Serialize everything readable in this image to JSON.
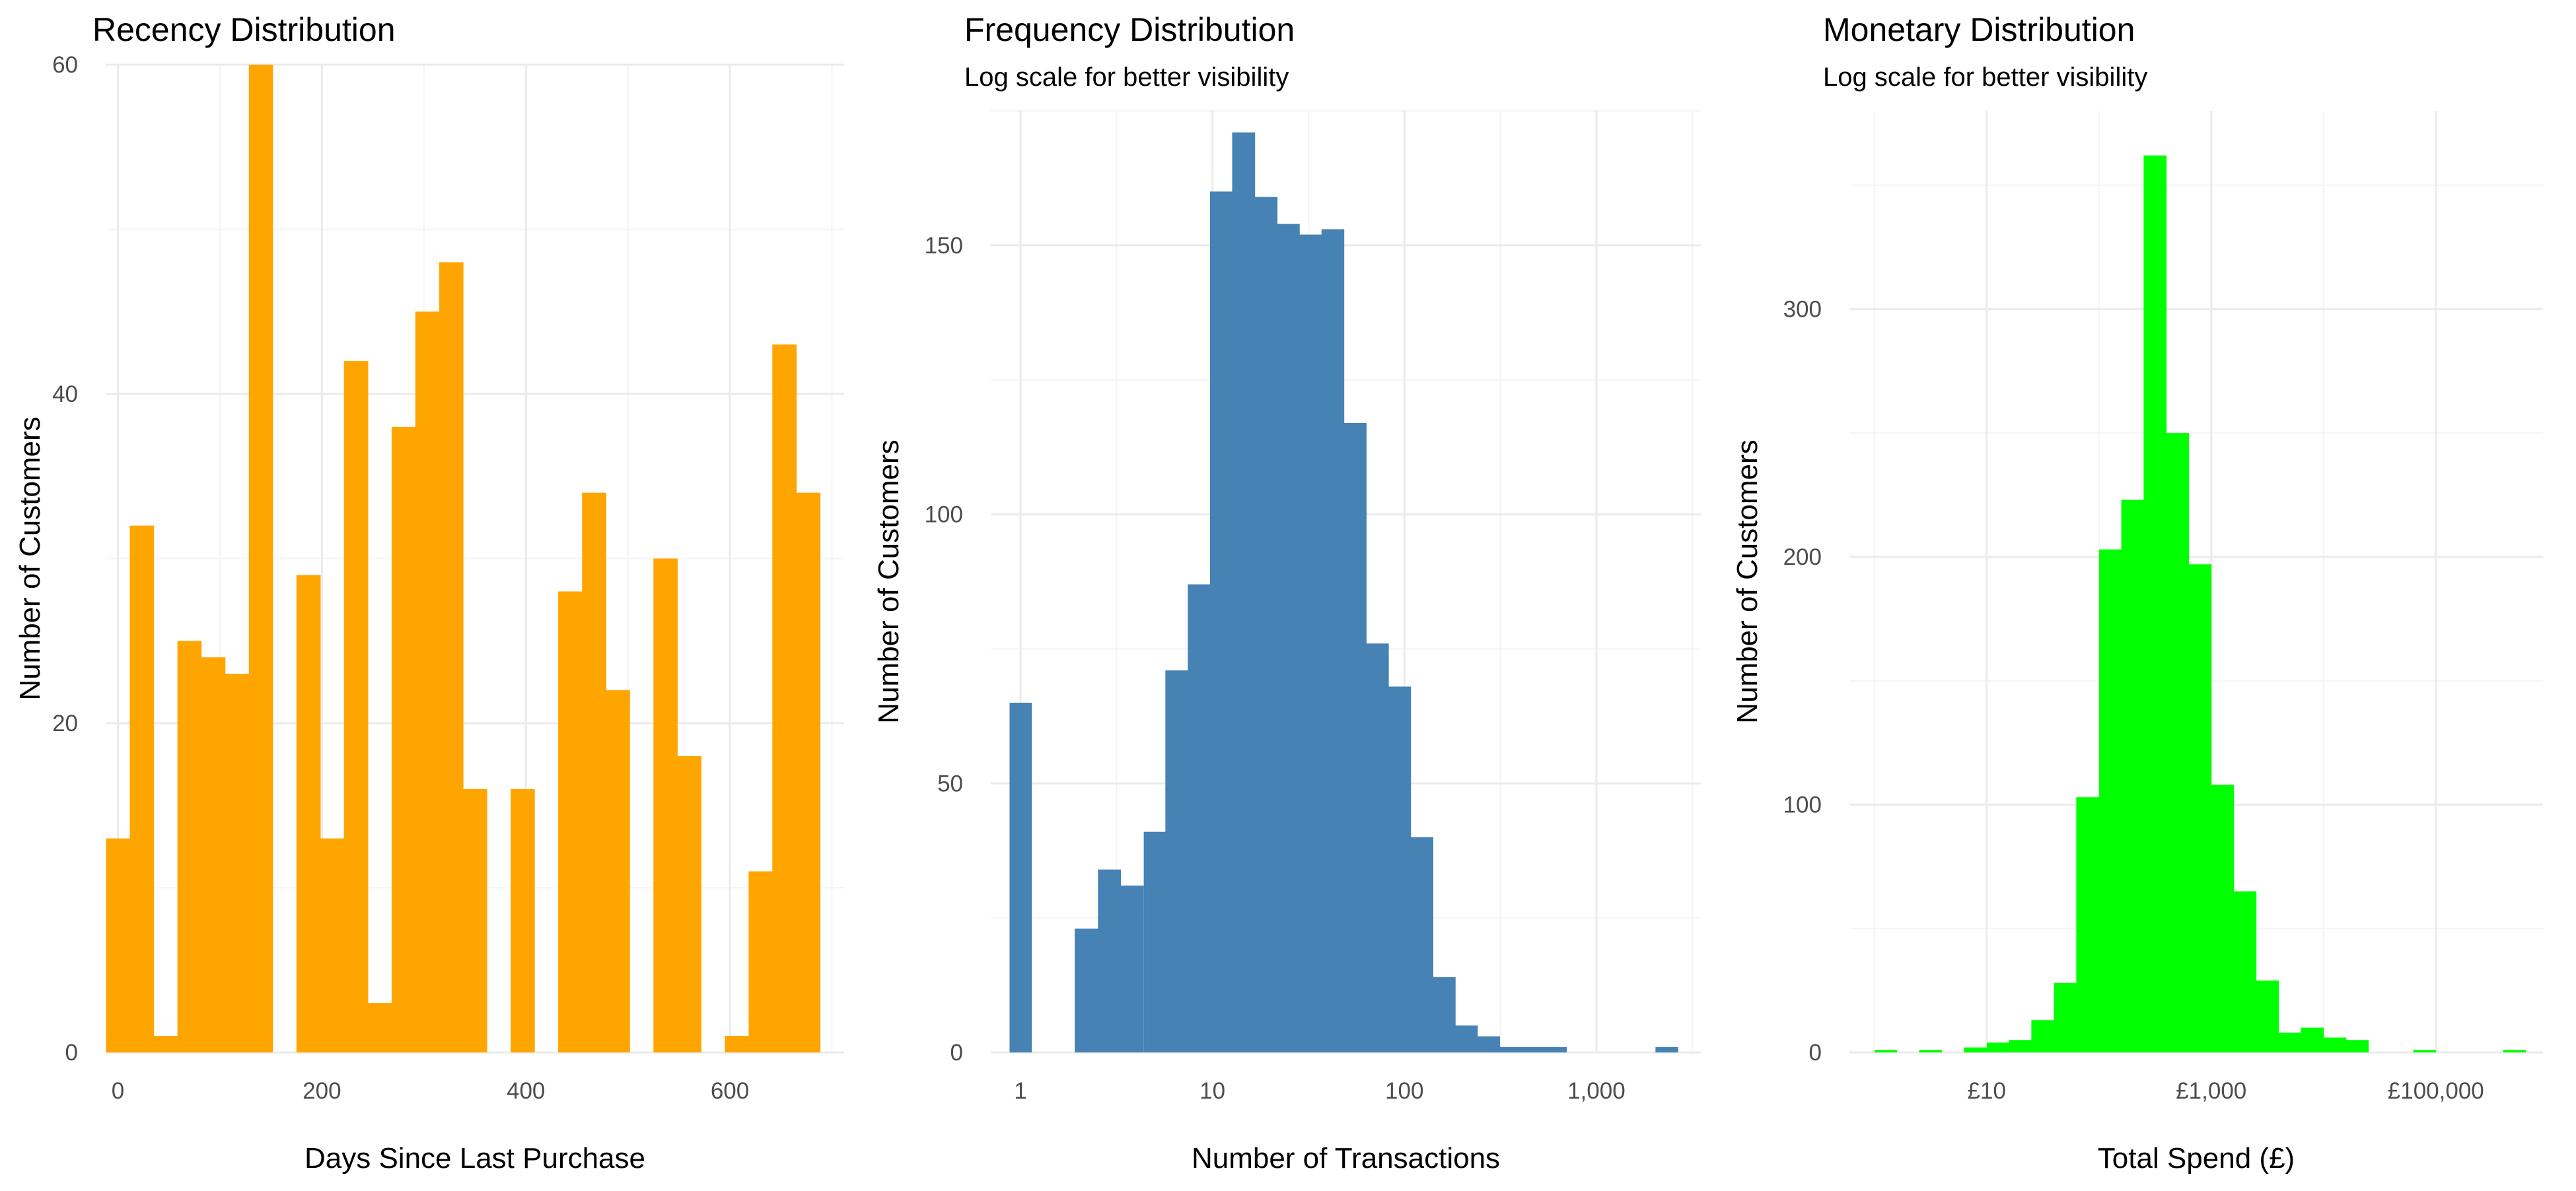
{
  "chart_data": [
    {
      "type": "bar",
      "title": "Recency Distribution",
      "subtitle": "",
      "xlabel": "Days Since Last Purchase",
      "ylabel": "Number of Customers",
      "color": "#FFA500",
      "x_scale": "linear",
      "xlim": [
        -12,
        712
      ],
      "ylim": [
        0,
        60
      ],
      "x_ticks": [
        0,
        200,
        400,
        600
      ],
      "x_tick_labels": [
        "0",
        "200",
        "400",
        "600"
      ],
      "y_ticks": [
        0,
        20,
        40,
        60
      ],
      "y_tick_labels": [
        "0",
        "20",
        "40",
        "60"
      ],
      "grid": true,
      "legend": "none",
      "bar_centers": [
        0,
        23.3,
        46.7,
        70,
        93.3,
        116.7,
        140,
        163.3,
        186.7,
        210,
        233.3,
        256.7,
        280,
        303.3,
        326.7,
        350,
        373.3,
        396.7,
        420,
        443.3,
        466.7,
        490,
        513.3,
        536.7,
        560,
        583.3,
        606.7,
        630,
        653.3,
        676.7
      ],
      "values": [
        13,
        32,
        1,
        25,
        24,
        23,
        60,
        0,
        29,
        13,
        42,
        3,
        38,
        45,
        48,
        16,
        0,
        16,
        0,
        28,
        34,
        22,
        0,
        30,
        18,
        0,
        1,
        11,
        43,
        34
      ]
    },
    {
      "type": "bar",
      "title": "Frequency Distribution",
      "subtitle": "Log scale for better visibility",
      "xlabel": "Number of Transactions",
      "ylabel": "Number of Customers",
      "color": "#4682B4",
      "x_scale": "log10",
      "xlim": [
        0.7,
        3500
      ],
      "ylim": [
        0,
        175
      ],
      "x_ticks": [
        1,
        10,
        100,
        1000
      ],
      "x_tick_labels": [
        "1",
        "10",
        "100",
        "1,000"
      ],
      "y_ticks": [
        0,
        50,
        100,
        150
      ],
      "y_tick_labels": [
        "0",
        "50",
        "100",
        "150"
      ],
      "grid": true,
      "legend": "none",
      "bar_centers": [
        1,
        1.3,
        1.7,
        2.2,
        2.9,
        3.8,
        5,
        6.5,
        8.5,
        11.1,
        14.5,
        19,
        24.8,
        32.4,
        42.3,
        55.3,
        72.2,
        94.3,
        123,
        161,
        210,
        274,
        358,
        468,
        611,
        798,
        1042,
        1361,
        1778,
        2322
      ],
      "values": [
        65,
        0,
        0,
        23,
        34,
        31,
        41,
        71,
        87,
        160,
        171,
        159,
        154,
        152,
        153,
        117,
        76,
        68,
        40,
        14,
        5,
        3,
        1,
        1,
        1,
        0,
        0,
        0,
        0,
        1
      ]
    },
    {
      "type": "bar",
      "title": "Monetary Distribution",
      "subtitle": "Log scale for better visibility",
      "xlabel": "Total Spend (£)",
      "ylabel": "Number of Customers",
      "color": "#00FF00",
      "x_scale": "log10",
      "xlim": [
        0.6,
        900000
      ],
      "ylim": [
        0,
        380
      ],
      "x_ticks": [
        10,
        1000,
        100000
      ],
      "x_tick_labels": [
        "£10",
        "£1,000",
        "£100,000"
      ],
      "y_ticks": [
        0,
        100,
        200,
        300
      ],
      "y_tick_labels": [
        "0",
        "100",
        "200",
        "300"
      ],
      "grid": true,
      "legend": "none",
      "bar_centers": [
        1.26,
        1.99,
        3.15,
        5,
        7.92,
        12.6,
        19.9,
        31.5,
        50,
        79.2,
        126,
        199,
        315,
        500,
        792,
        1256,
        1990,
        3154,
        5000,
        7924,
        12559,
        19905,
        31548,
        50000,
        79245,
        125594,
        199054,
        315479,
        500000
      ],
      "values": [
        1,
        0,
        1,
        0,
        2,
        4,
        5,
        13,
        28,
        103,
        203,
        223,
        362,
        250,
        197,
        108,
        65,
        29,
        8,
        10,
        6,
        5,
        0,
        0,
        1,
        0,
        0,
        0,
        1
      ]
    }
  ]
}
